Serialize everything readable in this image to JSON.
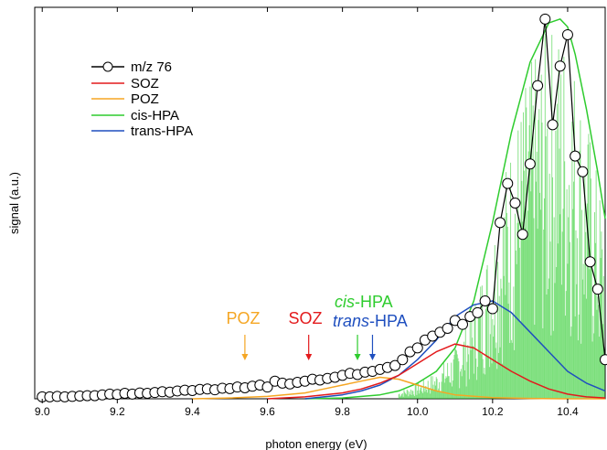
{
  "chart_data": {
    "type": "line",
    "xlabel": "photon energy (eV)",
    "ylabel": "signal (a.u.)",
    "xlim": [
      8.98,
      10.5
    ],
    "ylim": [
      0,
      1.0
    ],
    "x_ticks": [
      9.0,
      9.2,
      9.4,
      9.6,
      9.8,
      10.0,
      10.2,
      10.4
    ],
    "x_tick_labels": [
      "9.0",
      "9.2",
      "9.4",
      "9.6",
      "9.8",
      "10.0",
      "10.2",
      "10.4"
    ],
    "grid": false,
    "legend_position": "top-left",
    "legend": [
      "m/z 76",
      "SOZ",
      "POZ",
      "cis-HPA",
      "trans-HPA"
    ],
    "series": [
      {
        "name": "m/z 76",
        "color": "#000000",
        "marker": "open-circle",
        "x": [
          9.0,
          9.02,
          9.04,
          9.06,
          9.08,
          9.1,
          9.12,
          9.14,
          9.16,
          9.18,
          9.2,
          9.22,
          9.24,
          9.26,
          9.28,
          9.3,
          9.32,
          9.34,
          9.36,
          9.38,
          9.4,
          9.42,
          9.44,
          9.46,
          9.48,
          9.5,
          9.52,
          9.54,
          9.56,
          9.58,
          9.6,
          9.62,
          9.64,
          9.66,
          9.68,
          9.7,
          9.72,
          9.74,
          9.76,
          9.78,
          9.8,
          9.82,
          9.84,
          9.86,
          9.88,
          9.9,
          9.92,
          9.94,
          9.96,
          9.98,
          10.0,
          10.02,
          10.04,
          10.06,
          10.08,
          10.1,
          10.12,
          10.14,
          10.16,
          10.18,
          10.2,
          10.22,
          10.24,
          10.26,
          10.28,
          10.3,
          10.32,
          10.34,
          10.36,
          10.38,
          10.4,
          10.42,
          10.44,
          10.46,
          10.48,
          10.5
        ],
        "y": [
          0.005,
          0.005,
          0.006,
          0.005,
          0.006,
          0.007,
          0.008,
          0.008,
          0.01,
          0.012,
          0.011,
          0.014,
          0.012,
          0.015,
          0.014,
          0.016,
          0.018,
          0.017,
          0.02,
          0.022,
          0.021,
          0.024,
          0.025,
          0.023,
          0.027,
          0.026,
          0.03,
          0.028,
          0.032,
          0.035,
          0.03,
          0.045,
          0.04,
          0.038,
          0.042,
          0.045,
          0.05,
          0.048,
          0.052,
          0.055,
          0.06,
          0.065,
          0.062,
          0.068,
          0.07,
          0.075,
          0.08,
          0.085,
          0.1,
          0.12,
          0.13,
          0.15,
          0.16,
          0.17,
          0.18,
          0.2,
          0.19,
          0.21,
          0.22,
          0.25,
          0.23,
          0.45,
          0.55,
          0.5,
          0.42,
          0.6,
          0.8,
          0.97,
          0.7,
          0.85,
          0.93,
          0.62,
          0.58,
          0.35,
          0.28,
          0.1
        ]
      },
      {
        "name": "SOZ",
        "color": "#e31a1c",
        "x": [
          9.6,
          9.7,
          9.8,
          9.85,
          9.9,
          9.95,
          10.0,
          10.05,
          10.1,
          10.15,
          10.2,
          10.25,
          10.3,
          10.35,
          10.4,
          10.45,
          10.5
        ],
        "y": [
          0.0,
          0.005,
          0.015,
          0.025,
          0.04,
          0.06,
          0.09,
          0.12,
          0.14,
          0.13,
          0.1,
          0.07,
          0.045,
          0.025,
          0.012,
          0.005,
          0.002
        ]
      },
      {
        "name": "POZ",
        "color": "#f5a623",
        "x": [
          9.4,
          9.5,
          9.6,
          9.7,
          9.75,
          9.8,
          9.85,
          9.9,
          9.95,
          10.0,
          10.05,
          10.1,
          10.2,
          10.3,
          10.4,
          10.5
        ],
        "y": [
          0.0,
          0.002,
          0.006,
          0.015,
          0.025,
          0.035,
          0.045,
          0.055,
          0.05,
          0.035,
          0.02,
          0.01,
          0.003,
          0.001,
          0.0,
          0.0
        ]
      },
      {
        "name": "cis-HPA",
        "color": "#2ecc2e",
        "x": [
          9.7,
          9.8,
          9.9,
          9.95,
          10.0,
          10.05,
          10.1,
          10.15,
          10.2,
          10.25,
          10.3,
          10.35,
          10.38,
          10.4,
          10.42,
          10.45,
          10.48,
          10.5
        ],
        "y": [
          0.0,
          0.002,
          0.01,
          0.02,
          0.04,
          0.07,
          0.13,
          0.25,
          0.45,
          0.68,
          0.86,
          0.96,
          0.97,
          0.95,
          0.88,
          0.74,
          0.58,
          0.46
        ]
      },
      {
        "name": "trans-HPA",
        "color": "#1f4fbf",
        "x": [
          9.7,
          9.8,
          9.85,
          9.9,
          9.95,
          10.0,
          10.05,
          10.1,
          10.15,
          10.2,
          10.25,
          10.3,
          10.35,
          10.4,
          10.45,
          10.5
        ],
        "y": [
          0.0,
          0.01,
          0.02,
          0.035,
          0.06,
          0.1,
          0.15,
          0.21,
          0.24,
          0.25,
          0.22,
          0.17,
          0.12,
          0.07,
          0.04,
          0.02
        ]
      }
    ],
    "annotations": [
      {
        "label": "POZ",
        "x": 9.54,
        "color": "#f5a623"
      },
      {
        "label": "SOZ",
        "x": 9.71,
        "color": "#e31a1c"
      },
      {
        "label": "cis-HPA",
        "x": 9.84,
        "color": "#2ecc2e"
      },
      {
        "label": "trans-HPA",
        "x": 9.88,
        "color": "#1f4fbf"
      }
    ],
    "annotation_text": {
      "poz": "POZ",
      "soz": "SOZ",
      "cis_italic": "cis",
      "cis_rest": "-HPA",
      "trans_italic": "trans",
      "trans_rest": "-HPA"
    }
  }
}
